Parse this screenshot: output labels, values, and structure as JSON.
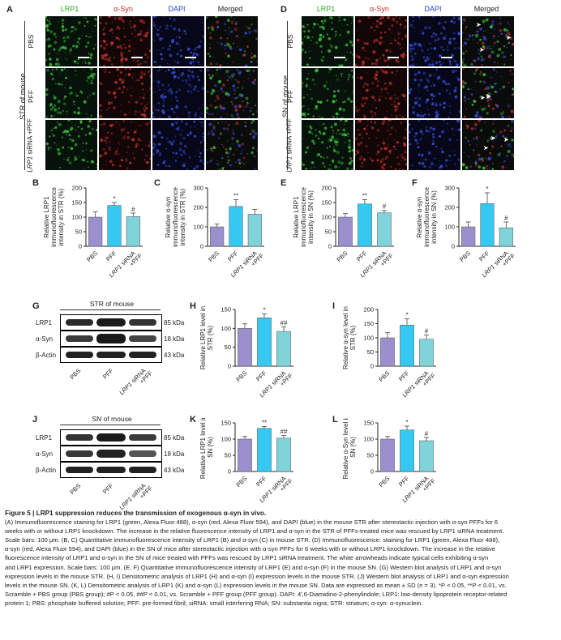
{
  "figure": {
    "panels": {
      "A": "A",
      "B": "B",
      "C": "C",
      "D": "D",
      "E": "E",
      "F": "F",
      "G": "G",
      "H": "H",
      "I": "I",
      "J": "J",
      "K": "K",
      "L": "L"
    },
    "channel_labels": [
      "LRP1",
      "α-Syn",
      "DAPI",
      "Merged"
    ],
    "channel_colors": {
      "lrp1": "#2ca02c",
      "asyn": "#d62728",
      "dapi": "#1f3fcf",
      "merged": "#222222"
    },
    "group_label_str": "STR of mouse",
    "group_label_sn": "SN of mouse",
    "row_labels": [
      "PBS",
      "PFF",
      "LRP1 siRNA +PFF"
    ],
    "row_label_lrp1": "LRP1",
    "row_label_sirna": "siRNA",
    "row_label_pff": "+PFF"
  },
  "blots": {
    "G": {
      "title": "STR of mouse",
      "rows": [
        "LRP1",
        "α-Syn",
        "β-Actin"
      ],
      "kda": [
        "85 kDa",
        "18 kDa",
        "43 kDa"
      ]
    },
    "J": {
      "title": "SN of mouse",
      "rows": [
        "LRP1",
        "α-Syn",
        "β-Actin"
      ],
      "kda": [
        "85 kDa",
        "18 kDa",
        "43 kDa"
      ]
    },
    "xlabels": [
      "PBS",
      "PFF",
      "LRP1 siRNA +PFF"
    ]
  },
  "chart_data": [
    {
      "id": "B",
      "type": "bar",
      "categories": [
        "PBS",
        "PFF",
        "LRP1 siRNA +PFF"
      ],
      "values": [
        100,
        140,
        102
      ],
      "errors": [
        18,
        10,
        12
      ],
      "marks": [
        "",
        "*",
        "#"
      ],
      "ylabel": "Relative LRP1 immunofluorescence intensity in STR (%)",
      "ylim": [
        0,
        200
      ],
      "yticks": [
        0,
        50,
        100,
        150,
        200
      ]
    },
    {
      "id": "C",
      "type": "bar",
      "categories": [
        "PBS",
        "PFF",
        "LRP1 siRNA +PFF"
      ],
      "values": [
        100,
        205,
        165
      ],
      "errors": [
        15,
        35,
        25
      ],
      "marks": [
        "",
        "**",
        ""
      ],
      "ylabel": "Relative α-syn immunofluorescence intensity in STR (%)",
      "ylim": [
        0,
        300
      ],
      "yticks": [
        0,
        100,
        200,
        300
      ]
    },
    {
      "id": "E",
      "type": "bar",
      "categories": [
        "PBS",
        "PFF",
        "LRP1 siRNA +PFF"
      ],
      "values": [
        100,
        145,
        115
      ],
      "errors": [
        12,
        15,
        8
      ],
      "marks": [
        "",
        "**",
        "#"
      ],
      "ylabel": "Relative LRP1 immunofluorescence intensity in SN (%)",
      "ylim": [
        0,
        200
      ],
      "yticks": [
        0,
        50,
        100,
        150,
        200
      ]
    },
    {
      "id": "F",
      "type": "bar",
      "categories": [
        "PBS",
        "PFF",
        "LRP1 siRNA +PFF"
      ],
      "values": [
        100,
        220,
        95
      ],
      "errors": [
        25,
        55,
        30
      ],
      "marks": [
        "",
        "*",
        "#"
      ],
      "ylabel": "Relative α-syn immunofluorescence intensity in SN (%)",
      "ylim": [
        0,
        300
      ],
      "yticks": [
        0,
        100,
        200,
        300
      ]
    },
    {
      "id": "H",
      "type": "bar",
      "categories": [
        "PBS",
        "PFF",
        "LRP1 siRNA +PFF"
      ],
      "values": [
        100,
        128,
        92
      ],
      "errors": [
        12,
        10,
        12
      ],
      "marks": [
        "",
        "*",
        "##"
      ],
      "ylabel": "Relative LRP1 level in STR (%)",
      "ylim": [
        0,
        150
      ],
      "yticks": [
        0,
        50,
        100,
        150
      ]
    },
    {
      "id": "I",
      "type": "bar",
      "categories": [
        "PBS",
        "PFF",
        "LRP1 siRNA +PFF"
      ],
      "values": [
        100,
        145,
        95
      ],
      "errors": [
        18,
        22,
        15
      ],
      "marks": [
        "",
        "*",
        "#"
      ],
      "ylabel": "Relative α-syn level in STR (%)",
      "ylim": [
        0,
        200
      ],
      "yticks": [
        0,
        50,
        100,
        150,
        200
      ]
    },
    {
      "id": "K",
      "type": "bar",
      "categories": [
        "PBS",
        "PFF",
        "LRP1 siRNA +PFF"
      ],
      "values": [
        100,
        133,
        103
      ],
      "errors": [
        8,
        6,
        8
      ],
      "marks": [
        "",
        "**",
        "##"
      ],
      "ylabel": "Relative LRP1 level in SN (%)",
      "ylim": [
        0,
        150
      ],
      "yticks": [
        0,
        50,
        100,
        150
      ]
    },
    {
      "id": "L",
      "type": "bar",
      "categories": [
        "PBS",
        "PFF",
        "LRP1 siRNA +PFF"
      ],
      "values": [
        100,
        128,
        95
      ],
      "errors": [
        8,
        12,
        10
      ],
      "marks": [
        "",
        "*",
        "#"
      ],
      "ylabel": "Relative α-Syn level in SN (%)",
      "ylim": [
        0,
        150
      ],
      "yticks": [
        0,
        50,
        100,
        150
      ]
    }
  ],
  "bar_colors": [
    "#9b8fce",
    "#35c8f0",
    "#7fd3d9"
  ],
  "caption": {
    "title": "Figure 5 | LRP1 suppression reduces the transmission of exogenous α-syn in vivo.",
    "lines": [
      "(A) Immunofluorescence staining for LRP1 (green, Alexa Fluor 488), α-syn (red, Alexa Fluor 594), and DAPI (blue) in the mouse STR after stereotactic injection with α-syn PFFs for 6",
      "weeks with or without LRP1 knockdown. The increase in the relative fluorescence intensity of LRP1 and α-syn in the STR of PFFs-treated mice was rescued by LRP1 siRNA treatment.",
      "Scale bars: 100 μm. (B, C) Quantitative immunofluorescence intensity of LRP1 (B) and α-syn (C) in mouse STR. (D) Immunofluorescence: staining for LRP1 (green, Alexa Fluor 488),",
      "α-syn (red, Alexa Fluor 594), and DAPI (blue) in the SN of mice after stereotactic injection with α-syn PFFs for 6 weeks with or without LRP1 knockdown. The increase in the relative",
      "fluorescence intensity of LRP1 and α-syn in the SN of mice treated with PFFs was rescued by LRP1 siRNA treatment. The white arrowheads indicate typical cells exhibiting α-syn",
      "and LRP1 expression. Scale bars: 100 μm. (E, F) Quantitative immunofluorescence intensity of LRP1 (E) and α-syn (F) in the mouse SN. (G) Western blot analysis of LRP1 and α-syn",
      "expression levels in the mouse STR. (H, I) Densitometric analysis of LRP1 (H) and α-syn (I) expression levels in the mouse STR. (J) Western blot analysis of LRP1 and α-syn expression",
      "levels in the mouse SN. (K, L) Densitometric analysis of LRP1 (K) and α-syn (L) expression levels in the mouse SN. Data are expressed as mean ± SD (n = 3). *P < 0.05, **P < 0.01, vs.",
      "Scramble + PBS group (PBS group); #P < 0.05, ##P < 0.01, vs. Scramble + PFF group (PFF group). DAPI: 4′,6-Diamidino-2-phenylindole; LRP1: low-density lipoprotein receptor-related",
      "protein 1; PBS: phosphate buffered solution; PFF: pre-formed fibril; siRNA: small interfering RNA; SN: substantia nigra; STR: striatum; α-syn: α-synuclein."
    ]
  }
}
